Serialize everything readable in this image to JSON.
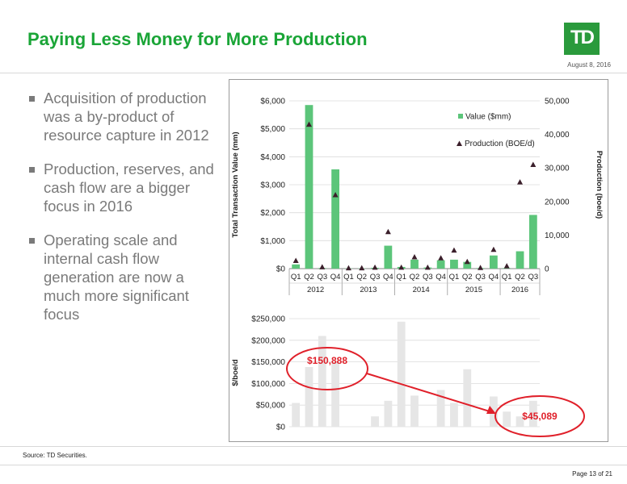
{
  "header": {
    "title": "Paying Less Money for More Production",
    "logo_text": "TD",
    "date": "August 8, 2016"
  },
  "bullets": [
    "Acquisition of production was a by-product of resource capture in 2012",
    "Production, reserves, and cash flow are a bigger focus in 2016",
    "Operating scale and internal cash flow generation are now a much more significant focus"
  ],
  "footer": {
    "source": "Source: TD Securities.",
    "page": "Page 13 of 21"
  },
  "colors": {
    "title_green": "#1aa537",
    "bar_green": "#5cc57a",
    "marker": "#3b1f2b",
    "bottom_bar": "#e6e6e6",
    "annotation_red": "#e0202a"
  },
  "chart_data": [
    {
      "type": "bar",
      "categories": [
        "Q1",
        "Q2",
        "Q3",
        "Q4",
        "Q1",
        "Q2",
        "Q3",
        "Q4",
        "Q1",
        "Q2",
        "Q3",
        "Q4",
        "Q1",
        "Q2",
        "Q3",
        "Q4",
        "Q1",
        "Q2",
        "Q3"
      ],
      "groups": [
        {
          "label": "2012",
          "count": 4
        },
        {
          "label": "2013",
          "count": 4
        },
        {
          "label": "2014",
          "count": 4
        },
        {
          "label": "2015",
          "count": 4
        },
        {
          "label": "2016",
          "count": 3
        }
      ],
      "series": [
        {
          "name": "Value ($mm)",
          "type": "bar",
          "axis": "left",
          "values": [
            150,
            5850,
            20,
            3550,
            10,
            10,
            30,
            820,
            60,
            320,
            40,
            300,
            320,
            240,
            20,
            470,
            20,
            620,
            1920
          ]
        },
        {
          "name": "Production (BOE/d)",
          "type": "marker",
          "axis": "right",
          "values": [
            2400,
            43000,
            500,
            22000,
            200,
            200,
            400,
            11000,
            400,
            3500,
            400,
            3200,
            5500,
            2100,
            300,
            5700,
            800,
            25800,
            31000
          ]
        }
      ],
      "ylabel": "Total Transaction Value (mm)",
      "y2label": "Production (boe/d)",
      "ylim": [
        0,
        6000
      ],
      "y2lim": [
        0,
        50000
      ],
      "yticks": [
        "$0",
        "$1,000",
        "$2,000",
        "$3,000",
        "$4,000",
        "$5,000",
        "$6,000"
      ],
      "y2ticks": [
        "0",
        "10,000",
        "20,000",
        "30,000",
        "40,000",
        "50,000"
      ],
      "legend_position": "top-right",
      "grid": true
    },
    {
      "type": "bar",
      "values": [
        55000,
        138000,
        210000,
        150000,
        0,
        0,
        24000,
        60000,
        243000,
        72000,
        0,
        85000,
        55000,
        133000,
        0,
        70000,
        35000,
        24000,
        60000
      ],
      "ylabel": "$/boe/d",
      "ylim": [
        0,
        250000
      ],
      "yticks": [
        "$0",
        "$50,000",
        "$100,000",
        "$150,000",
        "$200,000",
        "$250,000"
      ],
      "grid": true,
      "annotations": [
        {
          "text": "$150,888",
          "value": 150888
        },
        {
          "text": "$45,089",
          "value": 45089
        }
      ]
    }
  ]
}
